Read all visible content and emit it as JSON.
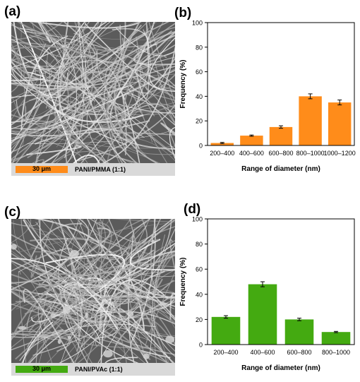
{
  "panels": {
    "a": {
      "label": "(a)",
      "scale_text": "30 μm",
      "sample": "PANI/PMMA (1:1)",
      "bar_color": "#ff8c1a"
    },
    "b": {
      "label": "(b)"
    },
    "c": {
      "label": "(c)",
      "scale_text": "30 μm",
      "sample": "PANI/PVAc (1:1)",
      "bar_color": "#44aa11"
    },
    "d": {
      "label": "(d)"
    }
  },
  "chart_data": [
    {
      "type": "bar",
      "panel": "(b)",
      "categories": [
        "200–400",
        "400–600",
        "600–800",
        "800–1000",
        "1000–1200"
      ],
      "values": [
        2,
        8,
        15,
        40,
        35
      ],
      "errors": [
        0.5,
        0.5,
        1,
        2,
        2
      ],
      "xlabel": "Range of diameter (nm)",
      "ylabel": "Frequency (%)",
      "ylim": [
        0,
        100
      ],
      "yticks": [
        0,
        20,
        40,
        60,
        80,
        100
      ],
      "color": "#ff8c1a"
    },
    {
      "type": "bar",
      "panel": "(d)",
      "categories": [
        "200–400",
        "400–600",
        "600–800",
        "800–1000"
      ],
      "values": [
        22,
        48,
        20,
        10
      ],
      "errors": [
        1,
        2,
        1,
        0.5
      ],
      "xlabel": "Range of diameter (nm)",
      "ylabel": "Frequency (%)",
      "ylim": [
        0,
        100
      ],
      "yticks": [
        0,
        20,
        40,
        60,
        80,
        100
      ],
      "color": "#44aa11"
    }
  ]
}
